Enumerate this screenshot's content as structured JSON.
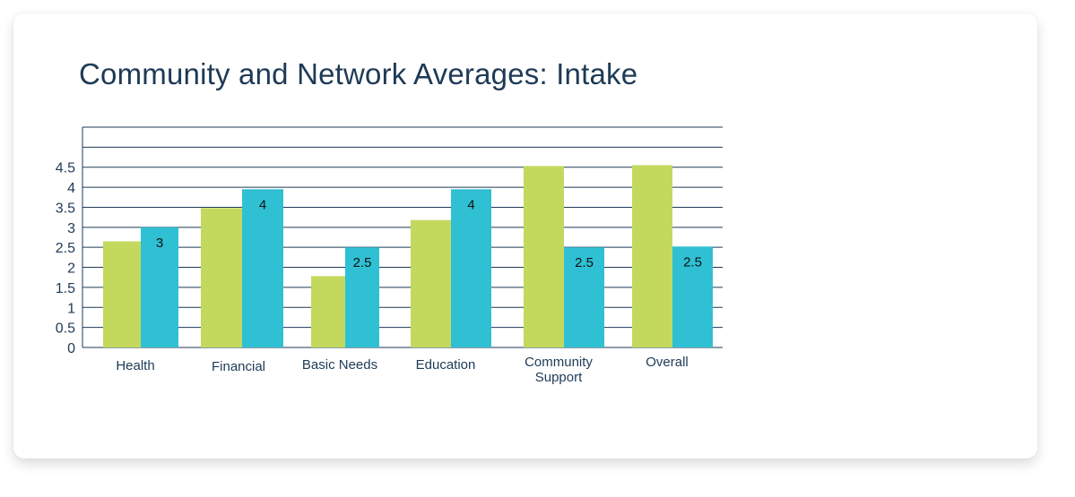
{
  "card": {},
  "chart_data": {
    "type": "bar",
    "title": "Community and Network Averages: Intake",
    "xlabel": "",
    "ylabel": "",
    "ylim": [
      0,
      5.5
    ],
    "yticks": [
      0,
      0.5,
      1,
      1.5,
      2,
      2.5,
      3,
      3.5,
      4,
      4.5
    ],
    "categories": [
      "Health",
      "Financial",
      "Basic Needs",
      "Education",
      "Community Support",
      "Overall"
    ],
    "series": [
      {
        "values": [
          2.65,
          3.48,
          1.78,
          3.18,
          4.53,
          4.55
        ],
        "color": "#c3d95e",
        "labels": [
          "",
          "",
          "",
          "",
          "",
          ""
        ]
      },
      {
        "values": [
          3.0,
          3.95,
          2.5,
          3.95,
          2.5,
          2.52
        ],
        "color": "#2fc0d4",
        "labels": [
          "3",
          "4",
          "2.5",
          "4",
          "2.5",
          "2.5"
        ]
      }
    ],
    "grid": true,
    "gridline_color": "#1e3a56",
    "label_color": "#1e3a56"
  }
}
